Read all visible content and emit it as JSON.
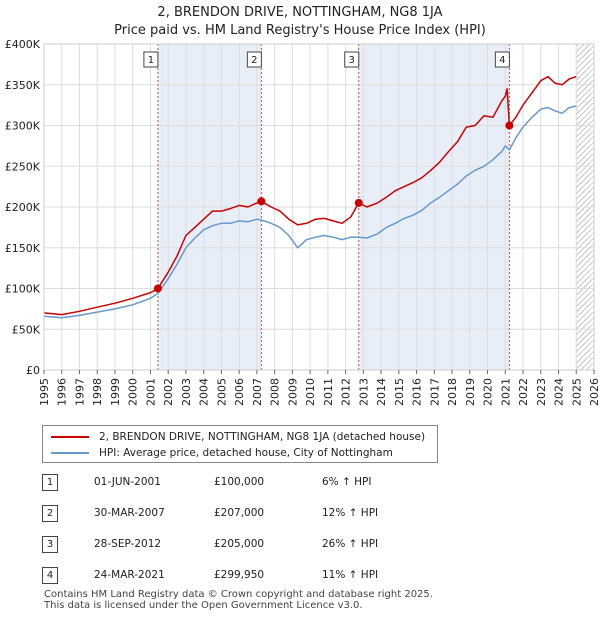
{
  "header": {
    "title": "2, BRENDON DRIVE, NOTTINGHAM, NG8 1JA",
    "subtitle": "Price paid vs. HM Land Registry's House Price Index (HPI)"
  },
  "legend": {
    "property_label": "2, BRENDON DRIVE, NOTTINGHAM, NG8 1JA (detached house)",
    "hpi_label": "HPI: Average price, detached house, City of Nottingham"
  },
  "colors": {
    "property": "#cc0000",
    "hpi": "#6699cc",
    "shade": "#e8eef8",
    "marker_line": "#dd4444",
    "grid": "#dddddd"
  },
  "transactions": [
    {
      "num": "1",
      "date": "01-JUN-2001",
      "price": "£100,000",
      "hpi": "6% ↑ HPI"
    },
    {
      "num": "2",
      "date": "30-MAR-2007",
      "price": "£207,000",
      "hpi": "12% ↑ HPI"
    },
    {
      "num": "3",
      "date": "28-SEP-2012",
      "price": "£205,000",
      "hpi": "26% ↑ HPI"
    },
    {
      "num": "4",
      "date": "24-MAR-2021",
      "price": "£299,950",
      "hpi": "11% ↑ HPI"
    }
  ],
  "footer": {
    "line1": "Contains HM Land Registry data © Crown copyright and database right 2025.",
    "line2": "This data is licensed under the Open Government Licence v3.0."
  },
  "chart_data": {
    "type": "line",
    "title": "2, BRENDON DRIVE, NOTTINGHAM, NG8 1JA",
    "subtitle": "Price paid vs. HM Land Registry's House Price Index (HPI)",
    "xlim": [
      1995,
      2026
    ],
    "ylim": [
      0,
      400000
    ],
    "x_ticks": [
      "1995",
      "1996",
      "1997",
      "1998",
      "1999",
      "2000",
      "2001",
      "2002",
      "2003",
      "2004",
      "2005",
      "2006",
      "2007",
      "2008",
      "2009",
      "2010",
      "2011",
      "2012",
      "2013",
      "2014",
      "2015",
      "2016",
      "2017",
      "2018",
      "2019",
      "2020",
      "2021",
      "2022",
      "2023",
      "2024",
      "2025",
      "2026"
    ],
    "y_ticks": [
      {
        "value": 0,
        "label": "£0"
      },
      {
        "value": 50000,
        "label": "£50K"
      },
      {
        "value": 100000,
        "label": "£100K"
      },
      {
        "value": 150000,
        "label": "£150K"
      },
      {
        "value": 200000,
        "label": "£200K"
      },
      {
        "value": 250000,
        "label": "£250K"
      },
      {
        "value": 300000,
        "label": "£300K"
      },
      {
        "value": 350000,
        "label": "£350K"
      },
      {
        "value": 400000,
        "label": "£400K"
      }
    ],
    "shaded_ranges": [
      [
        2001.42,
        2007.25
      ],
      [
        2012.74,
        2021.23
      ]
    ],
    "future_hatch_start": 2025.0,
    "sale_markers": [
      {
        "label": "1",
        "x": 2001.42,
        "y": 100000
      },
      {
        "label": "2",
        "x": 2007.25,
        "y": 207000
      },
      {
        "label": "3",
        "x": 2012.74,
        "y": 205000
      },
      {
        "label": "4",
        "x": 2021.23,
        "y": 299950
      }
    ],
    "series": [
      {
        "name": "2, BRENDON DRIVE, NOTTINGHAM, NG8 1JA (detached house)",
        "x": [
          1995.0,
          1996.0,
          1997.0,
          1998.0,
          1999.0,
          2000.0,
          2001.0,
          2001.42,
          2002.0,
          2002.5,
          2003.0,
          2003.5,
          2004.0,
          2004.5,
          2005.0,
          2005.5,
          2006.0,
          2006.5,
          2007.0,
          2007.25,
          2007.8,
          2008.3,
          2008.8,
          2009.3,
          2009.8,
          2010.3,
          2010.8,
          2011.3,
          2011.8,
          2012.3,
          2012.74,
          2013.2,
          2013.8,
          2014.3,
          2014.8,
          2015.3,
          2015.8,
          2016.3,
          2016.8,
          2017.3,
          2017.8,
          2018.3,
          2018.8,
          2019.3,
          2019.8,
          2020.3,
          2020.8,
          2021.0,
          2021.1,
          2021.23,
          2021.6,
          2022.0,
          2022.5,
          2023.0,
          2023.4,
          2023.8,
          2024.2,
          2024.6,
          2025.0
        ],
        "y": [
          70000,
          68000,
          72000,
          77000,
          82000,
          88000,
          95000,
          100000,
          120000,
          140000,
          165000,
          175000,
          185000,
          195000,
          195000,
          198000,
          202000,
          200000,
          205000,
          207000,
          200000,
          195000,
          185000,
          178000,
          180000,
          185000,
          186000,
          183000,
          180000,
          188000,
          205000,
          200000,
          205000,
          212000,
          220000,
          225000,
          230000,
          236000,
          245000,
          255000,
          268000,
          280000,
          298000,
          300000,
          312000,
          310000,
          330000,
          336000,
          345000,
          299950,
          310000,
          325000,
          340000,
          355000,
          360000,
          352000,
          350000,
          357000,
          360000
        ]
      },
      {
        "name": "HPI: Average price, detached house, City of Nottingham",
        "x": [
          1995.0,
          1996.0,
          1997.0,
          1998.0,
          1999.0,
          2000.0,
          2001.0,
          2001.42,
          2002.0,
          2002.5,
          2003.0,
          2003.5,
          2004.0,
          2004.5,
          2005.0,
          2005.5,
          2006.0,
          2006.5,
          2007.0,
          2007.25,
          2007.8,
          2008.3,
          2008.8,
          2009.3,
          2009.8,
          2010.3,
          2010.8,
          2011.3,
          2011.8,
          2012.3,
          2012.74,
          2013.2,
          2013.8,
          2014.3,
          2014.8,
          2015.3,
          2015.8,
          2016.3,
          2016.8,
          2017.3,
          2017.8,
          2018.3,
          2018.8,
          2019.3,
          2019.8,
          2020.3,
          2020.8,
          2021.0,
          2021.23,
          2021.6,
          2022.0,
          2022.5,
          2023.0,
          2023.4,
          2023.8,
          2024.2,
          2024.6,
          2025.0
        ],
        "y": [
          66000,
          64000,
          67000,
          71000,
          75000,
          80000,
          88000,
          94000,
          112000,
          130000,
          150000,
          162000,
          172000,
          177000,
          180000,
          180000,
          183000,
          182000,
          185000,
          184000,
          180000,
          175000,
          165000,
          150000,
          160000,
          163000,
          165000,
          163000,
          160000,
          163000,
          163000,
          162000,
          167000,
          175000,
          180000,
          186000,
          190000,
          196000,
          205000,
          212000,
          220000,
          228000,
          238000,
          245000,
          250000,
          258000,
          268000,
          275000,
          270000,
          285000,
          298000,
          310000,
          320000,
          322000,
          318000,
          315000,
          322000,
          324000
        ]
      }
    ]
  }
}
